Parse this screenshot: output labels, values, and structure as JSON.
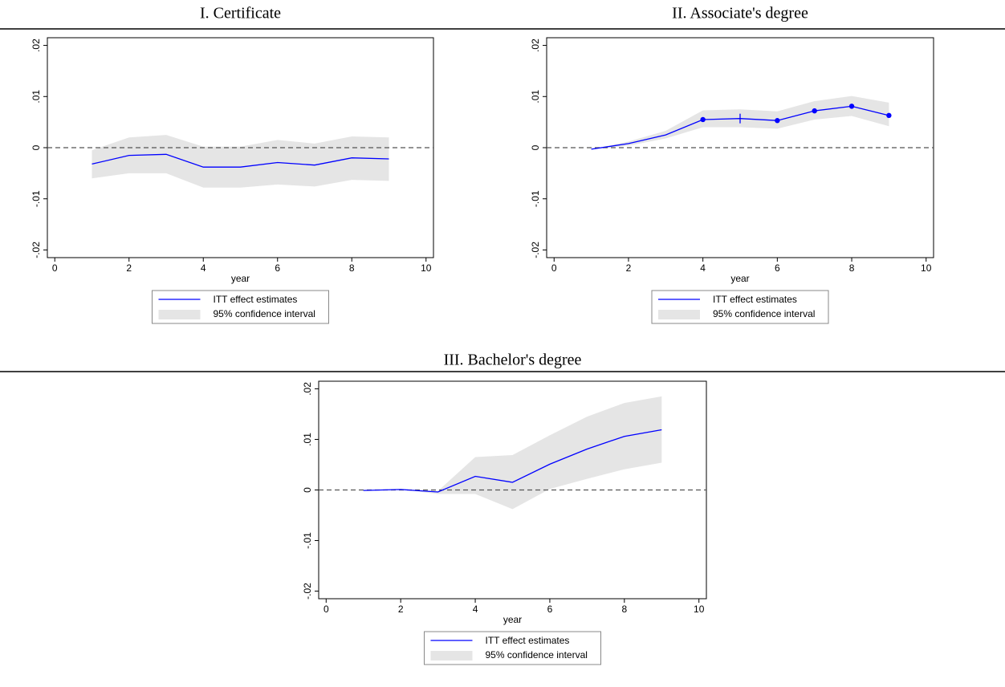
{
  "chart_data": [
    {
      "type": "line",
      "title": "I. Certificate",
      "xlabel": "year",
      "x": [
        1,
        2,
        3,
        4,
        5,
        6,
        7,
        8,
        9
      ],
      "series": [
        {
          "name": "ITT effect estimates",
          "color": "#0000ff",
          "values": [
            -0.0032,
            -0.0015,
            -0.0013,
            -0.0038,
            -0.0038,
            -0.0029,
            -0.0034,
            -0.002,
            -0.0022
          ],
          "markers": [
            "none",
            "none",
            "none",
            "none",
            "none",
            "none",
            "none",
            "none",
            "none"
          ]
        }
      ],
      "ci": {
        "name": "95% confidence interval",
        "color": "#e5e5e5",
        "lower": [
          -0.006,
          -0.005,
          -0.005,
          -0.0078,
          -0.0078,
          -0.0072,
          -0.0076,
          -0.0063,
          -0.0065
        ],
        "upper": [
          -0.0005,
          0.002,
          0.0025,
          0.0002,
          0.0002,
          0.0015,
          0.0008,
          0.0022,
          0.002
        ]
      },
      "xlim": [
        -0.2,
        10.2
      ],
      "ylim": [
        -0.0215,
        0.0215
      ],
      "xticks": [
        0,
        2,
        4,
        6,
        8,
        10
      ],
      "yticks": [
        {
          "value": -0.02,
          "label": "-.02"
        },
        {
          "value": -0.01,
          "label": "-.01"
        },
        0,
        {
          "value": 0.01,
          "label": ".01"
        },
        {
          "value": 0.02,
          "label": ".02"
        }
      ],
      "zero_line": true
    },
    {
      "type": "line",
      "title": "II. Associate's degree",
      "xlabel": "year",
      "x": [
        1,
        2,
        3,
        4,
        5,
        6,
        7,
        8,
        9
      ],
      "series": [
        {
          "name": "ITT effect estimates",
          "color": "#0000ff",
          "values": [
            -0.0003,
            0.0008,
            0.0025,
            0.0055,
            0.0057,
            0.0053,
            0.0072,
            0.0081,
            0.0063
          ],
          "markers": [
            "none",
            "none",
            "none",
            "dot",
            "tick",
            "dot",
            "dot",
            "dot",
            "dot"
          ]
        }
      ],
      "ci": {
        "name": "95% confidence interval",
        "color": "#e5e5e5",
        "lower": [
          -0.0003,
          0.0004,
          0.0018,
          0.004,
          0.004,
          0.0037,
          0.0055,
          0.0062,
          0.0042
        ],
        "upper": [
          -0.0003,
          0.0012,
          0.0033,
          0.0073,
          0.0075,
          0.0071,
          0.0091,
          0.0101,
          0.0088
        ]
      },
      "xlim": [
        -0.2,
        10.2
      ],
      "ylim": [
        -0.0215,
        0.0215
      ],
      "xticks": [
        0,
        2,
        4,
        6,
        8,
        10
      ],
      "yticks": [
        {
          "value": -0.02,
          "label": "-.02"
        },
        {
          "value": -0.01,
          "label": "-.01"
        },
        0,
        {
          "value": 0.01,
          "label": ".01"
        },
        {
          "value": 0.02,
          "label": ".02"
        }
      ],
      "zero_line": true
    },
    {
      "type": "line",
      "title": "III. Bachelor's degree",
      "xlabel": "year",
      "x": [
        1,
        2,
        3,
        4,
        5,
        6,
        7,
        8,
        9
      ],
      "series": [
        {
          "name": "ITT effect estimates",
          "color": "#0000ff",
          "values": [
            -0.0001,
            0.0001,
            -0.0004,
            0.0027,
            0.0015,
            0.0051,
            0.0081,
            0.0106,
            0.0119
          ],
          "markers": [
            "none",
            "none",
            "none",
            "none",
            "none",
            "none",
            "none",
            "none",
            "none"
          ]
        }
      ],
      "ci": {
        "name": "95% confidence interval",
        "color": "#e5e5e5",
        "lower": [
          -0.0001,
          0.0001,
          -0.0008,
          -0.0008,
          -0.0038,
          0.0002,
          0.0022,
          0.0041,
          0.0054
        ],
        "upper": [
          -0.0001,
          0.0001,
          -0.0002,
          0.0065,
          0.0069,
          0.0108,
          0.0145,
          0.0172,
          0.0185
        ]
      },
      "xlim": [
        -0.2,
        10.2
      ],
      "ylim": [
        -0.0215,
        0.0215
      ],
      "xticks": [
        0,
        2,
        4,
        6,
        8,
        10
      ],
      "yticks": [
        {
          "value": -0.02,
          "label": "-.02"
        },
        {
          "value": -0.01,
          "label": "-.01"
        },
        0,
        {
          "value": 0.01,
          "label": ".01"
        },
        {
          "value": 0.02,
          "label": ".02"
        }
      ],
      "zero_line": true
    }
  ]
}
